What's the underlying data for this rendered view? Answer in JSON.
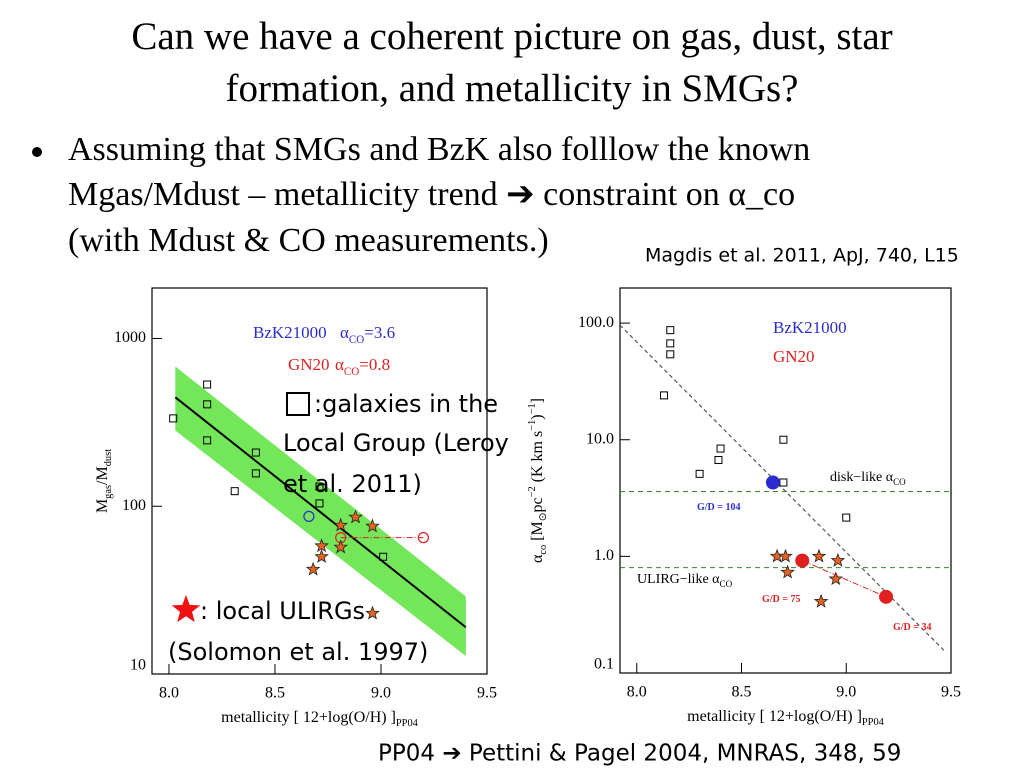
{
  "slide": {
    "title_lines": [
      "Can we have a coherent picture on gas, dust,  star",
      "formation, and metallicity in SMGs?"
    ],
    "bullet_lines": [
      "Assuming that SMGs and BzK also folllow the known",
      "Mgas/Mdust – metallicity trend ➔ constraint on α_co",
      "(with Mdust & CO measurements.)"
    ],
    "citation": "Magdis et al. 2011, ApJ, 740, L15",
    "footer": "PP04 ➔ Pettini & Pagel 2004, MNRAS, 348, 59",
    "overlay_local_group": [
      ":galaxies in the",
      "Local Group (Leroy",
      "et al. 2011)"
    ],
    "overlay_ulirgs": [
      ": local ULIRGs",
      "(Solomon et al. 1997)"
    ]
  },
  "chart_data": [
    {
      "type": "scatter",
      "y_log": true,
      "xlim": [
        7.92,
        9.5
      ],
      "ylim": [
        10,
        2000
      ],
      "xticks": [
        {
          "value": 8,
          "label": "8.0"
        },
        8.5,
        {
          "value": 9,
          "label": "9.0"
        },
        9.5
      ],
      "yticks": [
        10,
        100,
        1000
      ],
      "x_label": {
        "parts": [
          {
            "t": "metallicity [ 12+log(O/H) ]"
          },
          {
            "t": "PP04",
            "pos": "sub"
          }
        ]
      },
      "y_label": {
        "parts": [
          {
            "t": "M"
          },
          {
            "t": "gas",
            "pos": "sub"
          },
          {
            "t": "/M"
          },
          {
            "t": "dust",
            "pos": "sub"
          }
        ]
      },
      "annotations": [
        {
          "color": "#2b2bd0",
          "parts": [
            {
              "t": "α"
            },
            {
              "t": "CO",
              "pos": "sub"
            },
            {
              "t": "=3.6"
            }
          ]
        },
        {
          "color": "#e02020",
          "parts": [
            {
              "t": "α"
            },
            {
              "t": "CO",
              "pos": "sub"
            },
            {
              "t": "=0.8"
            }
          ]
        }
      ],
      "series": [
        {
          "marker": "band",
          "color": "#44dd22",
          "x": [
            8.03,
            9.4
          ],
          "values": [
            681,
            29
          ],
          "lower": [
            283,
            12.8
          ]
        },
        {
          "marker": "line",
          "color": "#000000",
          "x": [
            8.03,
            9.4
          ],
          "values": [
            446,
            19
          ]
        },
        {
          "marker": "square",
          "color": "#000000",
          "x": [
            8.02,
            8.18,
            8.18,
            8.18,
            8.31,
            8.41,
            8.41,
            8.71,
            8.71,
            9.01
          ],
          "values": [
            334,
            532,
            405,
            247,
            123,
            209,
            157,
            131,
            104,
            50
          ]
        },
        {
          "name": "BzK21000",
          "marker": "circle-open",
          "color": "#2b2bd0",
          "x": [
            8.66
          ],
          "values": [
            87
          ]
        },
        {
          "name": "GN20",
          "marker": "circle-open",
          "connect": true,
          "color": "#e02020",
          "x": [
            8.81,
            9.2
          ],
          "values": [
            65,
            65
          ]
        },
        {
          "marker": "star",
          "color": "#e8641e",
          "x": [
            8.68,
            8.72,
            8.72,
            8.81,
            8.81,
            8.88,
            8.96,
            8.96
          ],
          "values": [
            42,
            58,
            50,
            57,
            77,
            86,
            76,
            23
          ]
        }
      ]
    },
    {
      "type": "scatter",
      "y_log": true,
      "xlim": [
        7.92,
        9.5
      ],
      "ylim": [
        0.1,
        200
      ],
      "xticks": [
        {
          "value": 8,
          "label": "8.0"
        },
        8.5,
        {
          "value": 9,
          "label": "9.0"
        },
        9.5
      ],
      "yticks": [
        0.1,
        {
          "value": 1,
          "label": "1.0"
        },
        {
          "value": 10,
          "label": "10.0"
        },
        {
          "value": 100,
          "label": "100.0"
        }
      ],
      "x_label": {
        "parts": [
          {
            "t": "metallicity [ 12+log(O/H) ]"
          },
          {
            "t": "PP04",
            "pos": "sub"
          }
        ]
      },
      "y_label": {
        "parts": [
          {
            "t": "α"
          },
          {
            "t": "co",
            "pos": "sub"
          },
          {
            "t": " [M"
          },
          {
            "t": "⊙",
            "pos": "sub"
          },
          {
            "t": "pc"
          },
          {
            "t": "−2",
            "pos": "sup"
          },
          {
            "t": " (K km s"
          },
          {
            "t": "−1",
            "pos": "sup"
          },
          {
            "t": ")"
          },
          {
            "t": "−1",
            "pos": "sup"
          },
          {
            "t": "]"
          }
        ]
      },
      "annotations": [
        {
          "color": "#000000",
          "parts": [
            {
              "t": "disk−like α"
            },
            {
              "t": "CO",
              "pos": "sub"
            }
          ]
        },
        {
          "color": "#000000",
          "parts": [
            {
              "t": "ULIRG−like α"
            },
            {
              "t": "CO",
              "pos": "sub"
            }
          ]
        },
        {
          "color": "#2b2bd0",
          "parts": [
            {
              "t": "G/D = 104"
            }
          ]
        },
        {
          "color": "#e02020",
          "parts": [
            {
              "t": "G/D = 75"
            }
          ]
        },
        {
          "color": "#e02020",
          "parts": [
            {
              "t": "G/D = 34"
            }
          ]
        }
      ],
      "series": [
        {
          "marker": "dashed-line",
          "color": "#555555",
          "x": [
            7.92,
            9.47
          ],
          "values": [
            96,
            0.154
          ]
        },
        {
          "marker": "hline",
          "color": "#2e8b22",
          "values": [
            3.6
          ]
        },
        {
          "marker": "hline",
          "color": "#2e8b22",
          "values": [
            0.8
          ]
        },
        {
          "marker": "square",
          "color": "#000000",
          "x": [
            8.16,
            8.16,
            8.16,
            8.13,
            8.4,
            8.39,
            8.7,
            8.3,
            9.0,
            8.7
          ],
          "values": [
            87,
            67,
            54,
            24,
            8.4,
            6.7,
            10,
            5.1,
            2.15,
            4.3
          ]
        },
        {
          "marker": "star",
          "color": "#e8641e",
          "x": [
            8.67,
            8.71,
            8.72,
            8.87,
            8.96,
            8.95,
            8.88
          ],
          "values": [
            1.0,
            1.0,
            0.73,
            1.0,
            0.92,
            0.64,
            0.41
          ]
        },
        {
          "name": "BzK21000",
          "marker": "circle",
          "color": "#2b2bd0",
          "x": [
            8.65
          ],
          "values": [
            4.3
          ]
        },
        {
          "name": "GN20",
          "marker": "circle",
          "connect": true,
          "color": "#e02020",
          "x": [
            8.79,
            9.19
          ],
          "values": [
            0.92,
            0.45
          ]
        }
      ]
    }
  ]
}
